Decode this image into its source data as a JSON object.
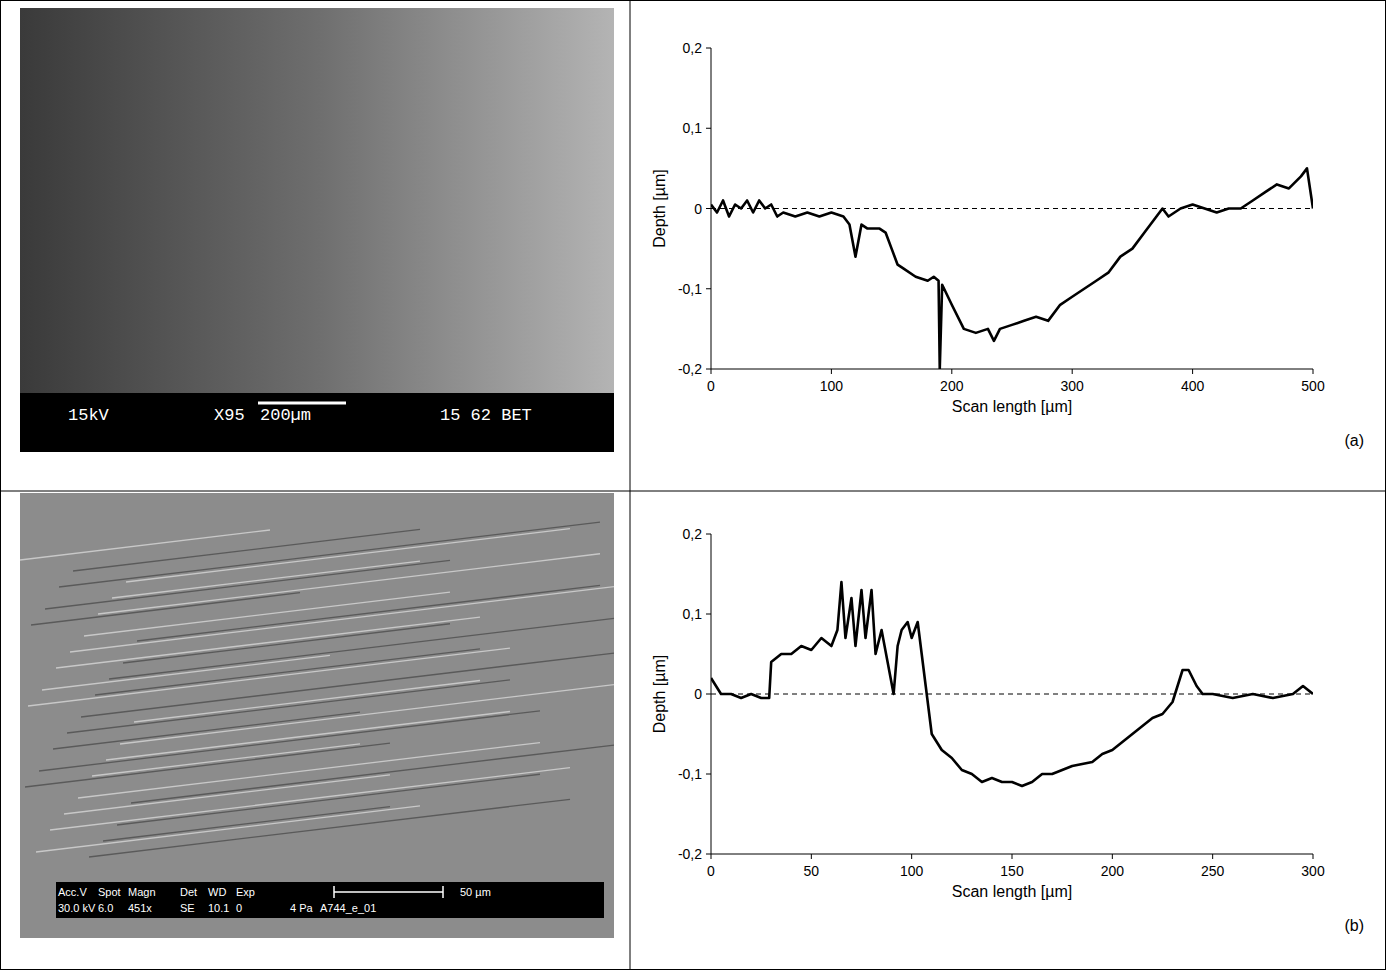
{
  "chart_data": [
    {
      "type": "line",
      "panel": "(a)",
      "xlabel": "Scan length [µm]",
      "ylabel": "Depth [µm]",
      "xlim": [
        0,
        500
      ],
      "ylim": [
        -0.2,
        0.2
      ],
      "xticks": [
        0,
        100,
        200,
        300,
        400,
        500
      ],
      "yticks": [
        {
          "value": -0.2,
          "label": "-0,2"
        },
        {
          "value": -0.1,
          "label": "-0,1"
        },
        {
          "value": 0,
          "label": "0"
        },
        {
          "value": 0.1,
          "label": "0,1"
        },
        {
          "value": 0.2,
          "label": "0,2"
        }
      ],
      "baseline": 0,
      "grid": false,
      "color": "#000000",
      "line_style": "solid",
      "x": [
        0,
        5,
        10,
        15,
        20,
        25,
        30,
        35,
        40,
        45,
        50,
        55,
        60,
        70,
        80,
        90,
        100,
        110,
        115,
        120,
        125,
        130,
        140,
        145,
        150,
        155,
        160,
        170,
        180,
        185,
        189,
        190,
        192,
        200,
        210,
        220,
        230,
        235,
        240,
        250,
        260,
        270,
        280,
        290,
        300,
        310,
        320,
        330,
        340,
        350,
        360,
        370,
        375,
        380,
        390,
        400,
        410,
        420,
        430,
        440,
        450,
        460,
        470,
        480,
        490,
        495,
        500
      ],
      "values": [
        0.005,
        -0.005,
        0.01,
        -0.01,
        0.005,
        0,
        0.01,
        -0.005,
        0.01,
        0,
        0.005,
        -0.01,
        -0.005,
        -0.01,
        -0.005,
        -0.01,
        -0.005,
        -0.01,
        -0.02,
        -0.06,
        -0.02,
        -0.025,
        -0.025,
        -0.03,
        -0.05,
        -0.07,
        -0.075,
        -0.085,
        -0.09,
        -0.085,
        -0.09,
        -0.2,
        -0.095,
        -0.12,
        -0.15,
        -0.155,
        -0.15,
        -0.165,
        -0.15,
        -0.145,
        -0.14,
        -0.135,
        -0.14,
        -0.12,
        -0.11,
        -0.1,
        -0.09,
        -0.08,
        -0.06,
        -0.05,
        -0.03,
        -0.01,
        0,
        -0.01,
        0,
        0.005,
        0,
        -0.005,
        0,
        0,
        0.01,
        0.02,
        0.03,
        0.025,
        0.04,
        0.05,
        0
      ]
    },
    {
      "type": "line",
      "panel": "(b)",
      "xlabel": "Scan length [µm]",
      "ylabel": "Depth [µm]",
      "xlim": [
        0,
        300
      ],
      "ylim": [
        -0.2,
        0.2
      ],
      "xticks": [
        0,
        50,
        100,
        150,
        200,
        250,
        300
      ],
      "yticks": [
        {
          "value": -0.2,
          "label": "-0,2"
        },
        {
          "value": -0.1,
          "label": "-0,1"
        },
        {
          "value": 0,
          "label": "0"
        },
        {
          "value": 0.1,
          "label": "0,1"
        },
        {
          "value": 0.2,
          "label": "0,2"
        }
      ],
      "baseline": 0,
      "grid": false,
      "color": "#000000",
      "line_style": "solid",
      "x": [
        0,
        5,
        10,
        15,
        20,
        25,
        29,
        30,
        35,
        40,
        45,
        50,
        55,
        60,
        63,
        65,
        67,
        70,
        72,
        75,
        77,
        80,
        82,
        85,
        88,
        91,
        93,
        95,
        98,
        100,
        103,
        105,
        107,
        110,
        115,
        120,
        125,
        130,
        135,
        140,
        145,
        150,
        155,
        160,
        165,
        170,
        175,
        180,
        190,
        195,
        200,
        205,
        210,
        215,
        220,
        225,
        230,
        235,
        238,
        242,
        245,
        250,
        260,
        270,
        280,
        290,
        295,
        300
      ],
      "values": [
        0.02,
        0,
        0,
        -0.005,
        0,
        -0.005,
        -0.005,
        0.04,
        0.05,
        0.05,
        0.06,
        0.055,
        0.07,
        0.06,
        0.08,
        0.14,
        0.07,
        0.12,
        0.06,
        0.13,
        0.07,
        0.13,
        0.05,
        0.08,
        0.04,
        0,
        0.06,
        0.08,
        0.09,
        0.07,
        0.09,
        0.05,
        0.01,
        -0.05,
        -0.07,
        -0.08,
        -0.095,
        -0.1,
        -0.11,
        -0.105,
        -0.11,
        -0.11,
        -0.115,
        -0.11,
        -0.1,
        -0.1,
        -0.095,
        -0.09,
        -0.085,
        -0.075,
        -0.07,
        -0.06,
        -0.05,
        -0.04,
        -0.03,
        -0.025,
        -0.01,
        0.03,
        0.03,
        0.01,
        0,
        0,
        -0.005,
        0,
        -0.005,
        0,
        0.01,
        0
      ]
    }
  ],
  "sem_images": [
    {
      "voltage": "15kV",
      "magnification": "X95",
      "scale": "200µm",
      "id": "15 62 BET"
    },
    {
      "header": [
        "Acc.V",
        "Spot",
        "Magn",
        "Det",
        "WD",
        "Exp"
      ],
      "params": [
        "30.0 kV",
        "6.0",
        "451x",
        "SE",
        "10.1",
        "0"
      ],
      "extra": [
        "4 Pa",
        "A744_e_01"
      ],
      "scale": "50 µm"
    }
  ]
}
